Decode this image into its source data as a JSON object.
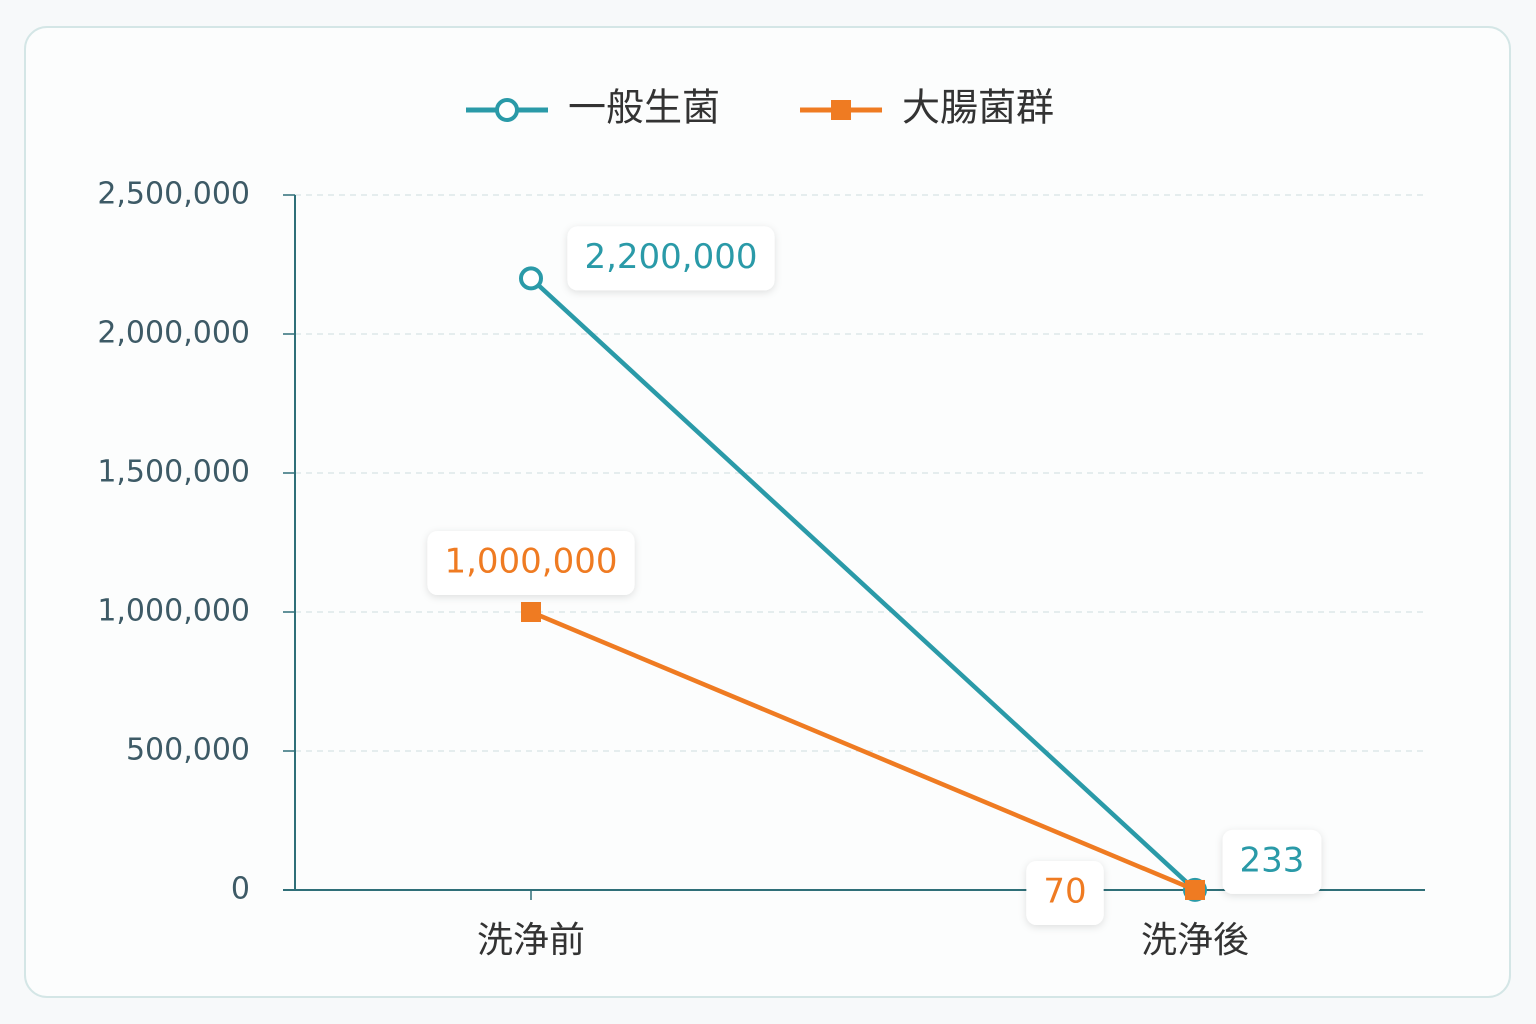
{
  "chart_data": {
    "type": "line",
    "categories": [
      "洗浄前",
      "洗浄後"
    ],
    "series": [
      {
        "name": "一般生菌",
        "color": "#2a9aa8",
        "marker": "circle",
        "values": [
          2200000,
          233
        ],
        "value_labels": [
          "2,200,000",
          "233"
        ]
      },
      {
        "name": "大腸菌群",
        "color": "#ef7b22",
        "marker": "square",
        "values": [
          1000000,
          70
        ],
        "value_labels": [
          "1,000,000",
          "70"
        ]
      }
    ],
    "ylim": [
      0,
      2500000
    ],
    "yticks": [
      0,
      {
        "value": 500000,
        "label": "500,000"
      },
      {
        "value": 1000000,
        "label": "1,000,000"
      },
      {
        "value": 1500000,
        "label": "1,500,000"
      },
      {
        "value": 2000000,
        "label": "2,000,000"
      },
      {
        "value": 2500000,
        "label": "2,500,000"
      }
    ],
    "grid": true,
    "legend": "top"
  }
}
